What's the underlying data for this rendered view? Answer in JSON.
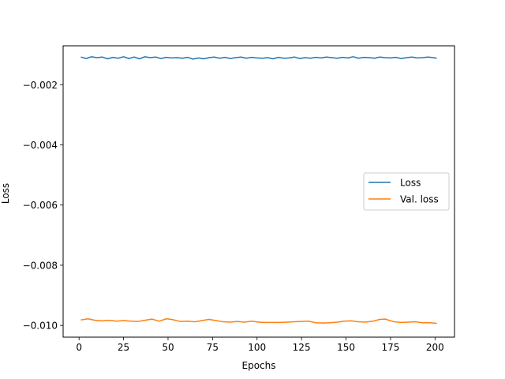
{
  "chart_data": {
    "type": "line",
    "title": "",
    "xlabel": "Epochs",
    "ylabel": "Loss",
    "xlim": [
      -8.95,
      210.95
    ],
    "ylim": [
      -0.01039,
      -0.000707
    ],
    "xticks": [
      0,
      25,
      50,
      75,
      100,
      125,
      150,
      175,
      200
    ],
    "xtick_labels": [
      "0",
      "25",
      "50",
      "75",
      "100",
      "125",
      "150",
      "175",
      "200"
    ],
    "yticks": [
      -0.002,
      -0.004,
      -0.006,
      -0.008,
      -0.01
    ],
    "ytick_labels": [
      "−0.002",
      "−0.004",
      "−0.006",
      "−0.008",
      "−0.010"
    ],
    "grid": false,
    "legend": {
      "placement": "center-right"
    },
    "series": [
      {
        "name": "Loss",
        "color": "#1f77b4",
        "x": [
          1,
          4,
          7,
          10,
          13,
          16,
          19,
          22,
          25,
          28,
          31,
          34,
          37,
          40,
          43,
          46,
          49,
          52,
          55,
          58,
          61,
          64,
          67,
          70,
          73,
          76,
          79,
          82,
          85,
          88,
          91,
          94,
          97,
          100,
          103,
          106,
          109,
          112,
          115,
          118,
          121,
          124,
          127,
          130,
          133,
          136,
          139,
          142,
          145,
          148,
          151,
          154,
          157,
          160,
          163,
          166,
          169,
          172,
          175,
          178,
          181,
          184,
          187,
          190,
          193,
          196,
          199,
          201
        ],
        "values": [
          -0.00108,
          -0.00113,
          -0.00107,
          -0.0011,
          -0.00108,
          -0.00114,
          -0.00109,
          -0.00112,
          -0.00107,
          -0.00113,
          -0.00108,
          -0.00114,
          -0.00107,
          -0.0011,
          -0.00108,
          -0.00113,
          -0.00109,
          -0.00111,
          -0.0011,
          -0.00112,
          -0.00109,
          -0.00115,
          -0.00111,
          -0.00114,
          -0.0011,
          -0.00108,
          -0.00112,
          -0.00109,
          -0.00113,
          -0.0011,
          -0.00108,
          -0.00112,
          -0.00109,
          -0.00111,
          -0.00112,
          -0.0011,
          -0.00114,
          -0.00109,
          -0.00112,
          -0.00111,
          -0.00108,
          -0.00113,
          -0.0011,
          -0.00112,
          -0.00109,
          -0.00111,
          -0.00108,
          -0.0011,
          -0.00112,
          -0.00109,
          -0.00111,
          -0.00107,
          -0.00112,
          -0.00109,
          -0.0011,
          -0.00112,
          -0.00108,
          -0.0011,
          -0.00111,
          -0.00109,
          -0.00113,
          -0.0011,
          -0.00108,
          -0.00111,
          -0.0011,
          -0.00108,
          -0.0011,
          -0.00112
        ]
      },
      {
        "name": "Val. loss",
        "color": "#ff7f0e",
        "x": [
          1,
          5,
          9,
          13,
          17,
          21,
          25,
          29,
          33,
          37,
          41,
          45,
          49,
          52,
          57,
          61,
          65,
          69,
          73,
          77,
          81,
          85,
          89,
          93,
          97,
          101,
          105,
          109,
          113,
          117,
          121,
          125,
          129,
          133,
          137,
          141,
          145,
          149,
          153,
          157,
          161,
          165,
          169,
          172,
          177,
          181,
          185,
          189,
          193,
          197,
          201
        ],
        "values": [
          -0.00982,
          -0.00978,
          -0.00983,
          -0.00985,
          -0.00983,
          -0.00986,
          -0.00984,
          -0.00986,
          -0.00987,
          -0.00983,
          -0.00979,
          -0.00986,
          -0.00978,
          -0.0098,
          -0.00987,
          -0.00986,
          -0.00988,
          -0.00984,
          -0.0098,
          -0.00984,
          -0.00988,
          -0.00989,
          -0.00987,
          -0.00989,
          -0.00986,
          -0.00989,
          -0.0099,
          -0.0099,
          -0.0099,
          -0.00989,
          -0.00988,
          -0.00987,
          -0.00986,
          -0.00991,
          -0.00992,
          -0.00991,
          -0.00989,
          -0.00986,
          -0.00985,
          -0.00988,
          -0.00989,
          -0.00986,
          -0.0098,
          -0.00979,
          -0.00988,
          -0.0099,
          -0.00989,
          -0.00988,
          -0.00991,
          -0.00991,
          -0.00993
        ]
      }
    ]
  }
}
